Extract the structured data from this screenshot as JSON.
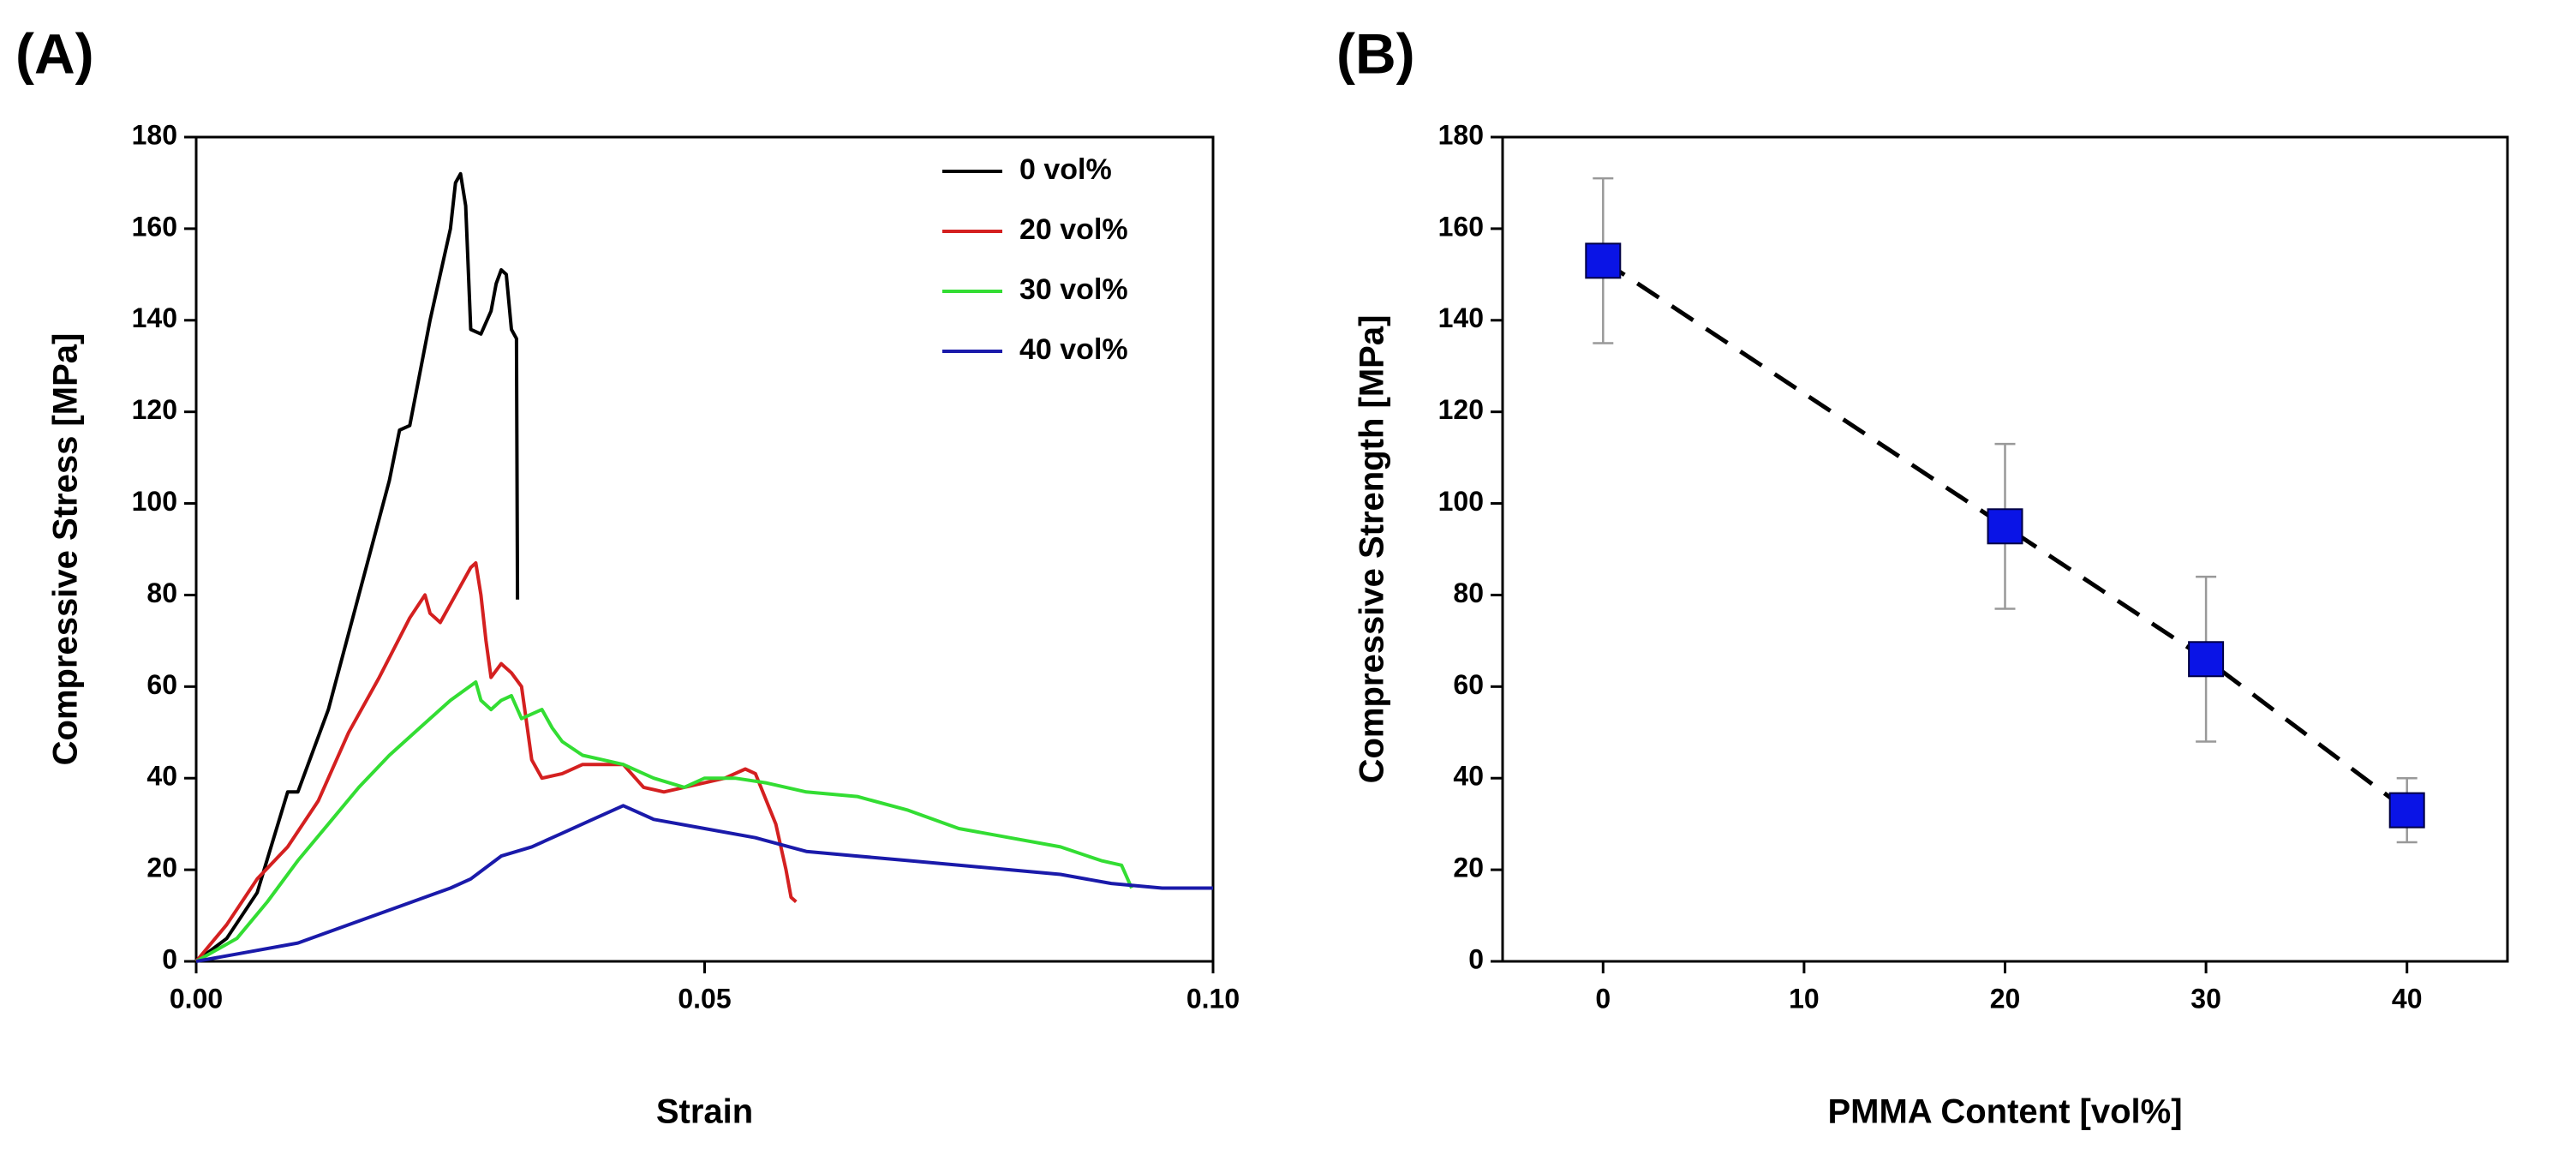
{
  "chart_data": [
    {
      "type": "line",
      "label": "(A)",
      "xlabel": "Strain",
      "ylabel": "Compressive Stress [MPa]",
      "xlim": [
        0,
        0.1
      ],
      "xticks": [
        {
          "value": 0,
          "label": "0.00"
        },
        {
          "value": 0.05,
          "label": "0.05"
        },
        {
          "value": 0.1,
          "label": "0.10"
        }
      ],
      "ylim": [
        0,
        180
      ],
      "yticks": [
        0,
        20,
        40,
        60,
        80,
        100,
        120,
        140,
        160,
        180
      ],
      "legend": "upper right",
      "series": [
        {
          "name": "0 vol%",
          "color": "#000000",
          "x": [
            0,
            0.003,
            0.006,
            0.009,
            0.01,
            0.013,
            0.016,
            0.019,
            0.02,
            0.021,
            0.023,
            0.025,
            0.0255,
            0.026,
            0.0265,
            0.027,
            0.028,
            0.029,
            0.0295,
            0.03,
            0.0305,
            0.031,
            0.0315,
            0.0316
          ],
          "values": [
            0,
            5,
            15,
            37,
            37,
            55,
            80,
            105,
            116,
            117,
            140,
            160,
            170,
            172,
            165,
            138,
            137,
            142,
            148,
            151,
            150,
            138,
            136,
            79
          ]
        },
        {
          "name": "20 vol%",
          "color": "#d42020",
          "x": [
            0,
            0.003,
            0.006,
            0.009,
            0.012,
            0.015,
            0.018,
            0.021,
            0.0225,
            0.023,
            0.024,
            0.026,
            0.027,
            0.0275,
            0.028,
            0.0285,
            0.029,
            0.03,
            0.031,
            0.032,
            0.0325,
            0.033,
            0.034,
            0.036,
            0.038,
            0.04,
            0.042,
            0.044,
            0.046,
            0.048,
            0.05,
            0.052,
            0.054,
            0.055,
            0.057,
            0.058,
            0.0585,
            0.059
          ],
          "values": [
            0,
            8,
            18,
            25,
            35,
            50,
            62,
            75,
            80,
            76,
            74,
            82,
            86,
            87,
            80,
            70,
            62,
            65,
            63,
            60,
            52,
            44,
            40,
            41,
            43,
            43,
            43,
            38,
            37,
            38,
            39,
            40,
            42,
            41,
            30,
            20,
            14,
            13
          ]
        },
        {
          "name": "30 vol%",
          "color": "#33dd33",
          "x": [
            0,
            0.004,
            0.007,
            0.01,
            0.013,
            0.016,
            0.019,
            0.022,
            0.025,
            0.0275,
            0.028,
            0.029,
            0.03,
            0.031,
            0.032,
            0.034,
            0.035,
            0.036,
            0.038,
            0.04,
            0.042,
            0.045,
            0.048,
            0.05,
            0.053,
            0.056,
            0.06,
            0.065,
            0.07,
            0.075,
            0.08,
            0.085,
            0.089,
            0.091,
            0.092
          ],
          "values": [
            0,
            5,
            13,
            22,
            30,
            38,
            45,
            51,
            57,
            61,
            57,
            55,
            57,
            58,
            53,
            55,
            51,
            48,
            45,
            44,
            43,
            40,
            38,
            40,
            40,
            39,
            37,
            36,
            33,
            29,
            27,
            25,
            22,
            21,
            16
          ]
        },
        {
          "name": "40 vol%",
          "color": "#1a1aaa",
          "x": [
            0,
            0.005,
            0.01,
            0.015,
            0.02,
            0.025,
            0.027,
            0.03,
            0.033,
            0.036,
            0.039,
            0.042,
            0.045,
            0.05,
            0.055,
            0.06,
            0.065,
            0.07,
            0.075,
            0.08,
            0.085,
            0.09,
            0.095,
            0.1
          ],
          "values": [
            0,
            2,
            4,
            8,
            12,
            16,
            18,
            23,
            25,
            28,
            31,
            34,
            31,
            29,
            27,
            24,
            23,
            22,
            21,
            20,
            19,
            17,
            16,
            16
          ]
        }
      ]
    },
    {
      "type": "scatter",
      "label": "(B)",
      "xlabel": "PMMA Content [vol%]",
      "ylabel": "Compressive Strength [MPa]",
      "xlim": [
        -5,
        45
      ],
      "xticks": [
        0,
        10,
        20,
        30,
        40
      ],
      "ylim": [
        0,
        180
      ],
      "yticks": [
        0,
        20,
        40,
        60,
        80,
        100,
        120,
        140,
        160,
        180
      ],
      "line": "dashed",
      "line_color": "#000000",
      "error_color": "#999999",
      "marker": "square",
      "series": [
        {
          "color": "#0a14e6",
          "x": [
            0,
            20,
            30,
            40
          ],
          "values": [
            153,
            95,
            66,
            33
          ],
          "errors": [
            18,
            18,
            18,
            7
          ]
        }
      ]
    }
  ]
}
